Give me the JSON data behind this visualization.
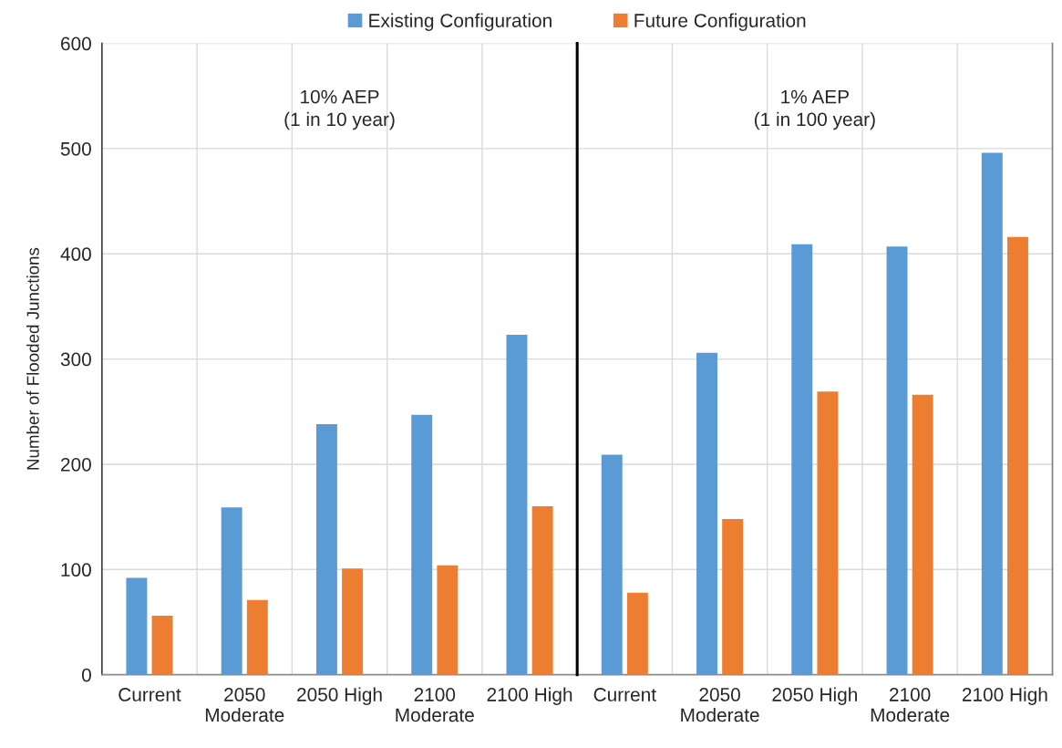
{
  "chart_data": [
    {
      "type": "bar",
      "categories": [
        "Current",
        "2050 Moderate",
        "2050 High",
        "2100 Moderate",
        "2100 High"
      ],
      "series": [
        {
          "name": "Existing Configuration",
          "color": "#5b9bd5",
          "values": [
            92,
            159,
            238,
            247,
            323
          ]
        },
        {
          "name": "Future Configuration",
          "color": "#ed7d31",
          "values": [
            56,
            71,
            101,
            104,
            160
          ]
        }
      ],
      "ylabel": "Number of Flooded Junctions",
      "ylim": [
        0,
        600
      ],
      "yticks": [
        0,
        100,
        200,
        300,
        400,
        500,
        600
      ],
      "grid": true,
      "legend": "top",
      "annotations": [
        "10% AEP\n(1 in 10 year)"
      ]
    },
    {
      "type": "bar",
      "categories": [
        "Current",
        "2050 Moderate",
        "2050 High",
        "2100 Moderate",
        "2100 High"
      ],
      "series": [
        {
          "color": "#5b9bd5",
          "values": [
            209,
            306,
            409,
            407,
            496
          ]
        },
        {
          "color": "#ed7d31",
          "values": [
            78,
            148,
            269,
            266,
            416
          ]
        }
      ],
      "ylim": [
        0,
        600
      ],
      "yticks": [
        0,
        100,
        200,
        300,
        400,
        500,
        600
      ],
      "tick_labels": "x",
      "grid": true,
      "annotations": [
        "1% AEP\n(1 in 100 year)"
      ]
    }
  ]
}
